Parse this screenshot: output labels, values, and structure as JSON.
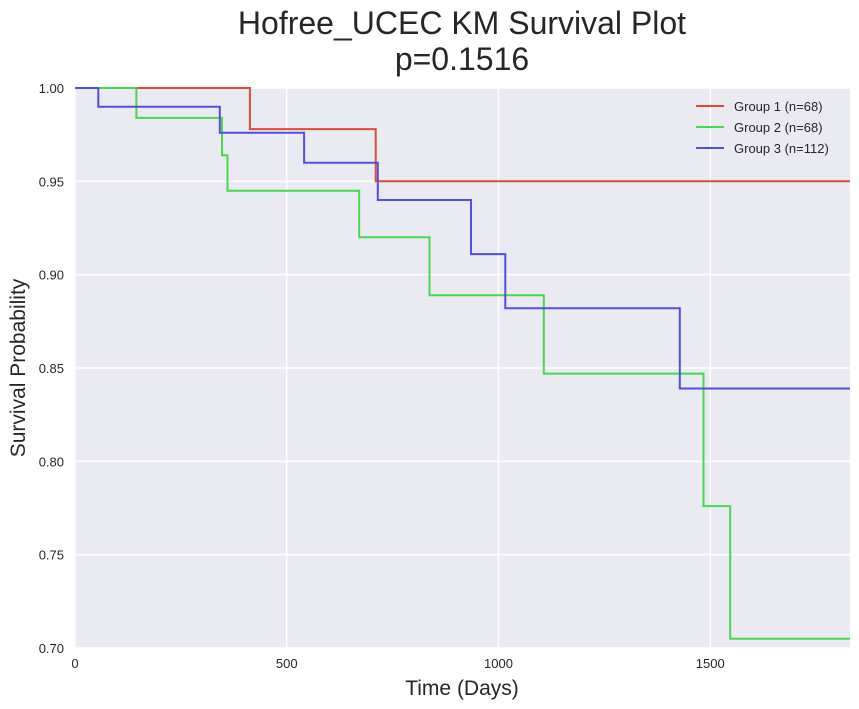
{
  "chart_data": {
    "type": "line",
    "title": "Hofree_UCEC KM Survival Plot",
    "subtitle": "p=0.1516",
    "xlabel": "Time (Days)",
    "ylabel": "Survival Probability",
    "xlim": [
      0,
      1830
    ],
    "ylim": [
      0.7,
      1.0
    ],
    "x_ticks": [
      0,
      500,
      1000,
      1500
    ],
    "x_tick_labels": [
      "0",
      "500",
      "1000",
      "1500"
    ],
    "y_ticks": [
      0.7,
      0.75,
      0.8,
      0.85,
      0.9,
      0.95,
      1.0
    ],
    "y_tick_labels": [
      "0.70",
      "0.75",
      "0.80",
      "0.85",
      "0.90",
      "0.95",
      "1.00"
    ],
    "grid": true,
    "legend_position": "top-right",
    "series": [
      {
        "name": "Group 1 (n=68)",
        "color": "#e24a33",
        "x": [
          0,
          413,
          413,
          710,
          710,
          1830
        ],
        "y": [
          1.0,
          1.0,
          0.978,
          0.978,
          0.95,
          0.95
        ]
      },
      {
        "name": "Group 2 (n=68)",
        "color": "#45d94d",
        "x": [
          0,
          145,
          145,
          347,
          347,
          360,
          360,
          671,
          671,
          837,
          837,
          1107,
          1107,
          1484,
          1484,
          1547,
          1547,
          1830
        ],
        "y": [
          1.0,
          1.0,
          0.984,
          0.984,
          0.964,
          0.964,
          0.945,
          0.945,
          0.92,
          0.92,
          0.889,
          0.889,
          0.847,
          0.847,
          0.776,
          0.776,
          0.705,
          0.705
        ]
      },
      {
        "name": "Group 3 (n=112)",
        "color": "#5050dc",
        "x": [
          0,
          55,
          55,
          342,
          342,
          541,
          541,
          715,
          715,
          935,
          935,
          1016,
          1016,
          1428,
          1428,
          1830
        ],
        "y": [
          1.0,
          1.0,
          0.99,
          0.99,
          0.976,
          0.976,
          0.96,
          0.96,
          0.94,
          0.94,
          0.911,
          0.911,
          0.882,
          0.882,
          0.839,
          0.839
        ]
      }
    ]
  }
}
